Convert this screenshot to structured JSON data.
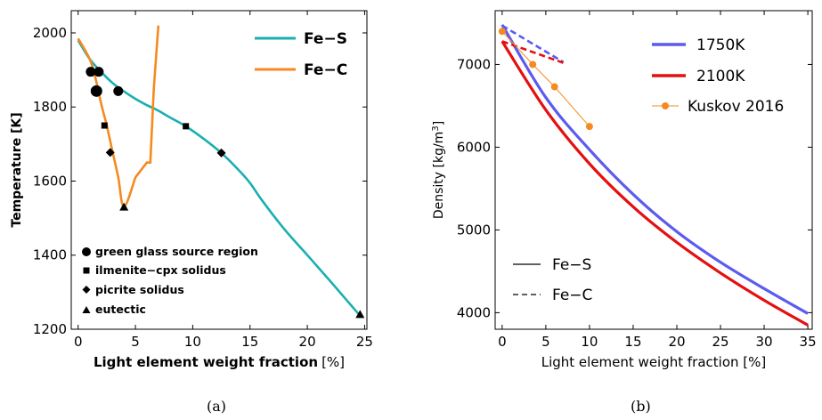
{
  "colors": {
    "fes": "#1aafb0",
    "fec": "#f58a1f",
    "k1750": "#5b5bf0",
    "k2100": "#e41010",
    "kuskov": "#f58a1f",
    "frame": "#000000"
  },
  "captions": {
    "a": "(a)",
    "b": "(b)"
  },
  "chart_data": [
    {
      "id": "a",
      "type": "line",
      "xlabel_bold": "Light element weight fraction",
      "xlabel_unit": "[%]",
      "ylabel": "Temperature [K]",
      "xlim": [
        -0.6,
        25.2
      ],
      "ylim": [
        1200,
        2060
      ],
      "xticks": [
        0,
        5,
        10,
        15,
        20,
        25
      ],
      "yticks": [
        1200,
        1400,
        1600,
        1800,
        2000
      ],
      "series": [
        {
          "name": "Fe−S",
          "color_key": "fes",
          "x": [
            0,
            1,
            2,
            3,
            4,
            5,
            6,
            7,
            8,
            9.4,
            11,
            12.5,
            14,
            15,
            16,
            18,
            20,
            22,
            24.5
          ],
          "y": [
            1980,
            1930,
            1895,
            1865,
            1842,
            1822,
            1805,
            1790,
            1772,
            1748,
            1713,
            1676,
            1630,
            1595,
            1550,
            1470,
            1400,
            1330,
            1240
          ]
        },
        {
          "name": "Fe−C",
          "color_key": "fec",
          "x": [
            0,
            1,
            1.5,
            2,
            2.5,
            3,
            3.5,
            4,
            5,
            6,
            6.3,
            6.6,
            7
          ],
          "y": [
            1985,
            1930,
            1880,
            1810,
            1750,
            1680,
            1610,
            1530,
            1610,
            1650,
            1650,
            1850,
            2020
          ]
        }
      ],
      "markers": [
        {
          "name": "green glass source region",
          "shape": "circle",
          "points": [
            [
              1.1,
              1895,
              "big"
            ],
            [
              1.8,
              1895,
              "big"
            ],
            [
              1.6,
              1843,
              "huge"
            ],
            [
              3.5,
              1843,
              "big"
            ]
          ]
        },
        {
          "name": "ilmenite−cpx solidus",
          "shape": "square",
          "points": [
            [
              2.3,
              1750
            ],
            [
              9.4,
              1748
            ]
          ]
        },
        {
          "name": "picrite solidus",
          "shape": "diamond",
          "points": [
            [
              2.8,
              1677
            ],
            [
              12.5,
              1676
            ]
          ]
        },
        {
          "name": "eutectic",
          "shape": "triangle",
          "points": [
            [
              4.0,
              1530
            ],
            [
              24.6,
              1240
            ]
          ]
        }
      ],
      "legend": {
        "placement": "top-right",
        "entries": [
          "Fe−S",
          "Fe−C"
        ]
      },
      "marker_legend": {
        "placement": "bottom-left"
      }
    },
    {
      "id": "b",
      "type": "line",
      "xlabel": "Light element weight fraction [%]",
      "ylabel_main": "Density [kg/m",
      "ylabel_sup": "3",
      "ylabel_end": "]",
      "xlim": [
        -0.8,
        35.5
      ],
      "ylim": [
        3800,
        7650
      ],
      "xticks": [
        0,
        5,
        10,
        15,
        20,
        25,
        30,
        35
      ],
      "yticks": [
        4000,
        5000,
        6000,
        7000
      ],
      "series": [
        {
          "name": "1750K Fe−S",
          "color_key": "k1750",
          "dash": false,
          "x": [
            0,
            5,
            10,
            15,
            20,
            25,
            30,
            35
          ],
          "y": [
            7480,
            6600,
            5970,
            5430,
            4980,
            4610,
            4290,
            3990
          ]
        },
        {
          "name": "2100K Fe−S",
          "color_key": "k2100",
          "dash": false,
          "x": [
            0,
            5,
            10,
            15,
            20,
            25,
            30,
            35
          ],
          "y": [
            7280,
            6450,
            5800,
            5280,
            4850,
            4480,
            4150,
            3850
          ]
        },
        {
          "name": "1750K Fe−C",
          "color_key": "k1750",
          "dash": true,
          "x": [
            0,
            7
          ],
          "y": [
            7470,
            7030
          ]
        },
        {
          "name": "2100K Fe−C",
          "color_key": "k2100",
          "dash": true,
          "x": [
            0,
            7
          ],
          "y": [
            7280,
            7020
          ]
        },
        {
          "name": "Kuskov 2016",
          "color_key": "kuskov",
          "dash": false,
          "markers": true,
          "thin": true,
          "x": [
            0,
            3.5,
            6,
            10
          ],
          "y": [
            7400,
            7000,
            6730,
            6250
          ]
        }
      ],
      "legend": {
        "placement": "top-right",
        "entries": [
          {
            "label": "1750K",
            "color_key": "k1750",
            "style": "thick"
          },
          {
            "label": "2100K",
            "color_key": "k2100",
            "style": "thick"
          },
          {
            "label": "Kuskov 2016",
            "color_key": "kuskov",
            "style": "marker"
          }
        ]
      },
      "style_legend": {
        "placement": "bottom-left",
        "entries": [
          {
            "label": "Fe−S",
            "style": "solid"
          },
          {
            "label": "Fe−C",
            "style": "dashed"
          }
        ]
      }
    }
  ]
}
